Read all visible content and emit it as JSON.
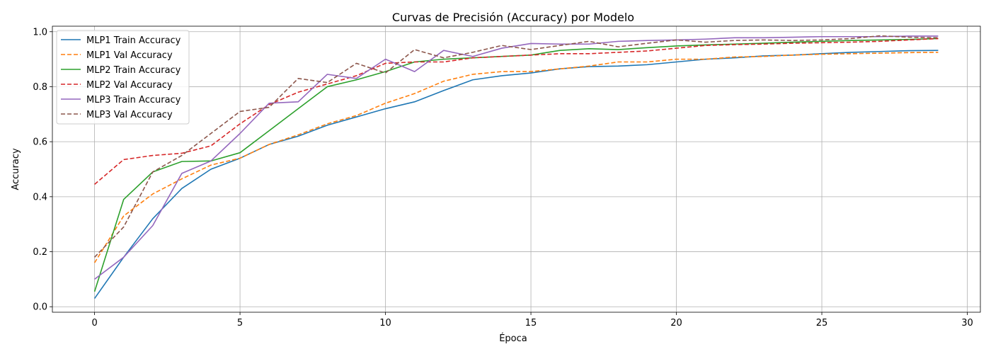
{
  "chart_data": {
    "type": "line",
    "title": "Curvas de Precisión (Accuracy) por Modelo",
    "xlabel": "Época",
    "ylabel": "Accuracy",
    "xlim": [
      -1.45,
      30.45
    ],
    "ylim": [
      -0.02,
      1.02
    ],
    "xticks": [
      0,
      5,
      10,
      15,
      20,
      25,
      30
    ],
    "yticks": [
      0.0,
      0.2,
      0.4,
      0.6,
      0.8,
      1.0
    ],
    "xtick_labels": [
      "0",
      "5",
      "10",
      "15",
      "20",
      "25",
      "30"
    ],
    "ytick_labels": [
      "0.0",
      "0.2",
      "0.4",
      "0.6",
      "0.8",
      "1.0"
    ],
    "grid": true,
    "legend_position": "top-left",
    "x": [
      0,
      1,
      2,
      3,
      4,
      5,
      6,
      7,
      8,
      9,
      10,
      11,
      12,
      13,
      14,
      15,
      16,
      17,
      18,
      19,
      20,
      21,
      22,
      23,
      24,
      25,
      26,
      27,
      28,
      29
    ],
    "series": [
      {
        "name": "MLP1 Train Accuracy",
        "color": "#1f77b4",
        "dash": "solid",
        "values": [
          0.03,
          0.18,
          0.32,
          0.43,
          0.5,
          0.54,
          0.59,
          0.62,
          0.66,
          0.69,
          0.72,
          0.745,
          0.786,
          0.825,
          0.84,
          0.85,
          0.865,
          0.873,
          0.875,
          0.88,
          0.89,
          0.9,
          0.905,
          0.912,
          0.915,
          0.92,
          0.925,
          0.928,
          0.931,
          0.932
        ]
      },
      {
        "name": "MLP1 Val Accuracy",
        "color": "#ff7f0e",
        "dash": "dashed",
        "values": [
          0.16,
          0.33,
          0.41,
          0.465,
          0.515,
          0.54,
          0.59,
          0.625,
          0.665,
          0.695,
          0.74,
          0.775,
          0.82,
          0.845,
          0.855,
          0.855,
          0.865,
          0.875,
          0.89,
          0.89,
          0.9,
          0.9,
          0.908,
          0.91,
          0.915,
          0.918,
          0.92,
          0.922,
          0.924,
          0.925
        ]
      },
      {
        "name": "MLP2 Train Accuracy",
        "color": "#2ca02c",
        "dash": "solid",
        "values": [
          0.055,
          0.39,
          0.49,
          0.528,
          0.53,
          0.56,
          0.64,
          0.72,
          0.8,
          0.825,
          0.855,
          0.89,
          0.9,
          0.905,
          0.91,
          0.915,
          0.932,
          0.938,
          0.935,
          0.942,
          0.948,
          0.952,
          0.955,
          0.958,
          0.962,
          0.965,
          0.968,
          0.97,
          0.972,
          0.975
        ]
      },
      {
        "name": "MLP2 Val Accuracy",
        "color": "#d62728",
        "dash": "dashed",
        "values": [
          0.445,
          0.535,
          0.55,
          0.558,
          0.585,
          0.665,
          0.735,
          0.78,
          0.81,
          0.84,
          0.885,
          0.89,
          0.89,
          0.905,
          0.91,
          0.915,
          0.92,
          0.92,
          0.925,
          0.93,
          0.94,
          0.95,
          0.953,
          0.955,
          0.958,
          0.96,
          0.962,
          0.965,
          0.97,
          0.975
        ]
      },
      {
        "name": "MLP3 Train Accuracy",
        "color": "#9467bd",
        "dash": "solid",
        "values": [
          0.1,
          0.18,
          0.295,
          0.485,
          0.53,
          0.63,
          0.74,
          0.745,
          0.845,
          0.83,
          0.9,
          0.855,
          0.932,
          0.91,
          0.94,
          0.957,
          0.955,
          0.955,
          0.965,
          0.968,
          0.97,
          0.973,
          0.978,
          0.978,
          0.98,
          0.982,
          0.982,
          0.982,
          0.984,
          0.984
        ]
      },
      {
        "name": "MLP3 Val Accuracy",
        "color": "#8c564b",
        "dash": "dashed",
        "values": [
          0.18,
          0.29,
          0.49,
          0.55,
          0.63,
          0.71,
          0.725,
          0.83,
          0.815,
          0.885,
          0.85,
          0.935,
          0.905,
          0.925,
          0.95,
          0.935,
          0.95,
          0.965,
          0.945,
          0.958,
          0.97,
          0.962,
          0.968,
          0.97,
          0.968,
          0.97,
          0.975,
          0.985,
          0.98,
          0.978
        ]
      }
    ]
  }
}
